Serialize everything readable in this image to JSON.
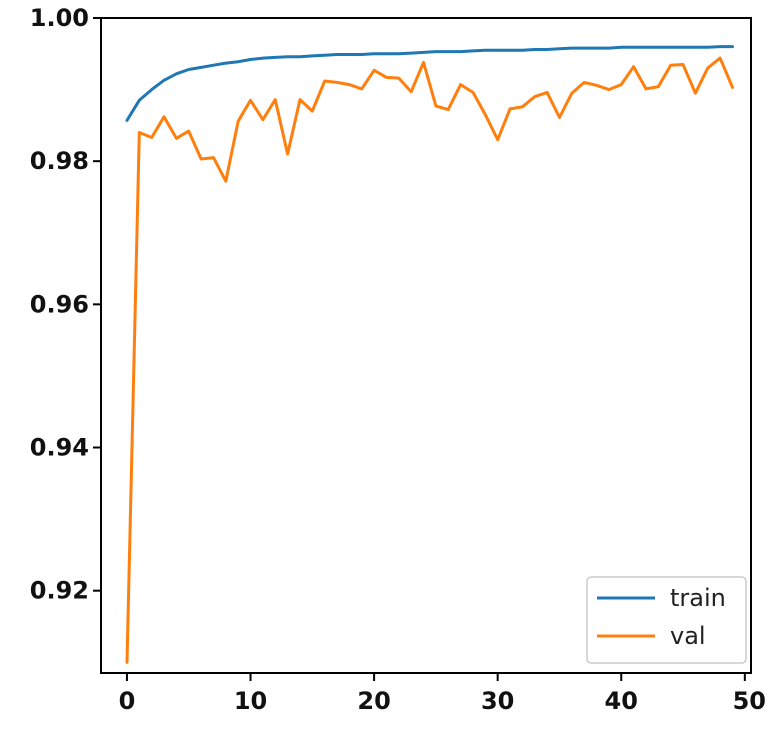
{
  "chart_data": {
    "type": "line",
    "title": "",
    "xlabel": "",
    "ylabel": "",
    "xlim": [
      -2.1,
      50.5
    ],
    "ylim": [
      0.9085,
      1.0
    ],
    "x_ticks": [
      0,
      10,
      20,
      30,
      40,
      50
    ],
    "x_tick_labels": [
      "0",
      "10",
      "20",
      "30",
      "40",
      "50"
    ],
    "y_ticks": [
      0.92,
      0.94,
      0.96,
      0.98,
      1.0
    ],
    "y_tick_labels": [
      "0.92",
      "0.94",
      "0.96",
      "0.98",
      "1.00"
    ],
    "grid": false,
    "legend_position": "lower-right",
    "x": [
      0,
      1,
      2,
      3,
      4,
      5,
      6,
      7,
      8,
      9,
      10,
      11,
      12,
      13,
      14,
      15,
      16,
      17,
      18,
      19,
      20,
      21,
      22,
      23,
      24,
      25,
      26,
      27,
      28,
      29,
      30,
      31,
      32,
      33,
      34,
      35,
      36,
      37,
      38,
      39,
      40,
      41,
      42,
      43,
      44,
      45,
      46,
      47,
      48,
      49
    ],
    "series": [
      {
        "name": "train",
        "color": "#1f77b4",
        "values": [
          0.9857,
          0.9885,
          0.99,
          0.9913,
          0.9922,
          0.9928,
          0.9931,
          0.9934,
          0.9937,
          0.9939,
          0.9942,
          0.9944,
          0.9945,
          0.9946,
          0.9946,
          0.9947,
          0.9948,
          0.9949,
          0.9949,
          0.9949,
          0.995,
          0.995,
          0.995,
          0.9951,
          0.9952,
          0.9953,
          0.9953,
          0.9953,
          0.9954,
          0.9955,
          0.9955,
          0.9955,
          0.9955,
          0.9956,
          0.9956,
          0.9957,
          0.9958,
          0.9958,
          0.9958,
          0.9958,
          0.9959,
          0.9959,
          0.9959,
          0.9959,
          0.9959,
          0.9959,
          0.9959,
          0.9959,
          0.996,
          0.996
        ]
      },
      {
        "name": "val",
        "color": "#ff7f0e",
        "values": [
          0.91,
          0.984,
          0.9833,
          0.9862,
          0.9832,
          0.9842,
          0.9803,
          0.9805,
          0.9772,
          0.9856,
          0.9885,
          0.9858,
          0.9886,
          0.981,
          0.9886,
          0.987,
          0.9912,
          0.991,
          0.9907,
          0.9901,
          0.9927,
          0.9917,
          0.9916,
          0.9897,
          0.9938,
          0.9877,
          0.9872,
          0.9907,
          0.9896,
          0.9865,
          0.983,
          0.9873,
          0.9876,
          0.989,
          0.9896,
          0.9861,
          0.9895,
          0.991,
          0.9906,
          0.99,
          0.9907,
          0.9932,
          0.9901,
          0.9904,
          0.9934,
          0.9935,
          0.9895,
          0.993,
          0.9944,
          0.9903
        ]
      }
    ]
  }
}
